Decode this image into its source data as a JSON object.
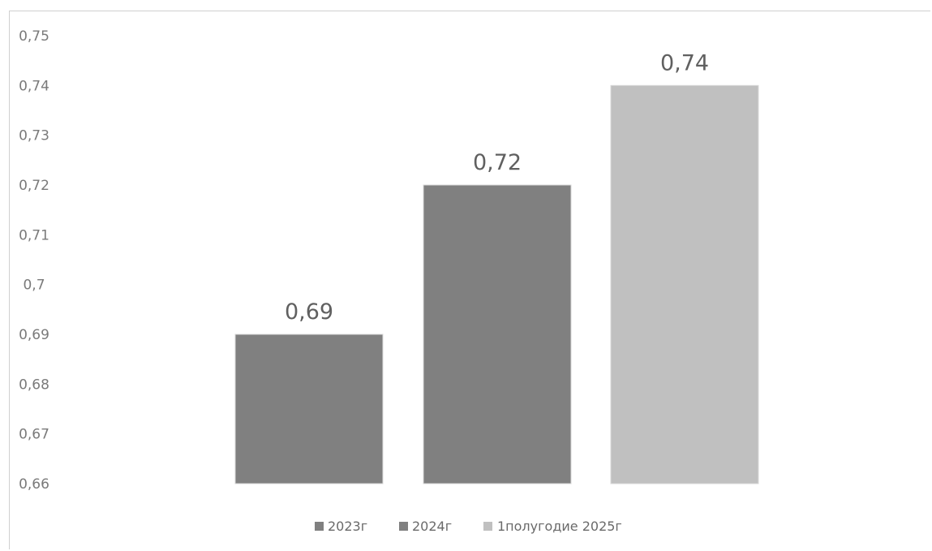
{
  "chart_data": {
    "type": "bar",
    "categories": [
      "2023г",
      "2024г",
      "1полугодие 2025г"
    ],
    "values": [
      0.69,
      0.72,
      0.74
    ],
    "value_labels": [
      "0,69",
      "0,72",
      "0,74"
    ],
    "series": [
      {
        "name": "2023г",
        "value": 0.69,
        "color": "#808080"
      },
      {
        "name": "2024г",
        "value": 0.72,
        "color": "#808080"
      },
      {
        "name": "1полугодие 2025г",
        "value": 0.74,
        "color": "#c0c0c0"
      }
    ],
    "yticks": [
      0.66,
      0.67,
      0.68,
      0.69,
      0.7,
      0.71,
      0.72,
      0.73,
      0.74,
      0.75
    ],
    "ytick_labels": [
      "0,66",
      "0,67",
      "0,68",
      "0,69",
      "0,7",
      "0,71",
      "0,72",
      "0,73",
      "0,74",
      "0,75"
    ],
    "ylim": [
      0.66,
      0.75
    ],
    "title": "",
    "xlabel": "",
    "ylabel": "",
    "grid": false,
    "legend": {
      "position": "bottom",
      "items": [
        "2023г",
        "2024г",
        "1полугодие 2025г"
      ]
    }
  }
}
